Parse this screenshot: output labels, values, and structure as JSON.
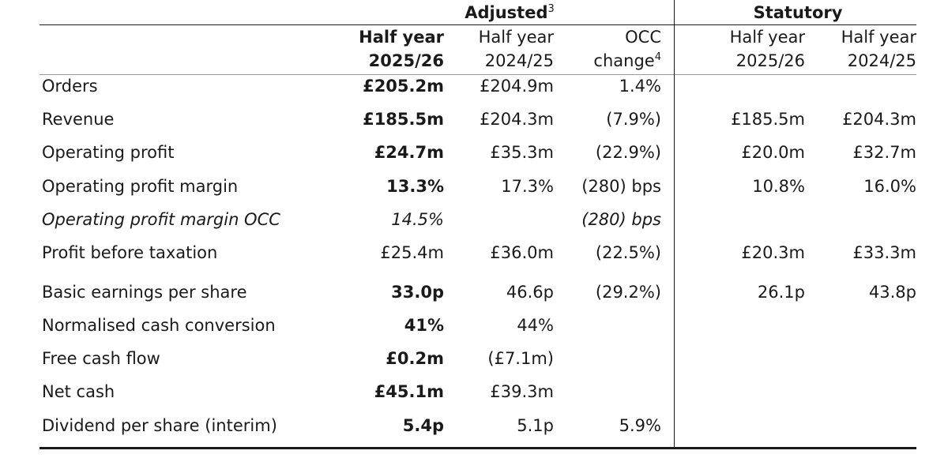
{
  "header": {
    "adjusted": {
      "label": "Adjusted",
      "note": "3"
    },
    "statutory": {
      "label": "Statutory"
    },
    "columns": [
      {
        "line1": "Half year",
        "line2": "2025/26"
      },
      {
        "line1": "Half year",
        "line2": "2024/25"
      },
      {
        "line1": "OCC",
        "line2": "change",
        "note": "4"
      },
      {
        "line1": "Half year",
        "line2": "2025/26"
      },
      {
        "line1": "Half year",
        "line2": "2024/25"
      }
    ]
  },
  "rows": [
    {
      "label": "Orders",
      "values": [
        "£205.2m",
        "£204.9m",
        "1.4%",
        "",
        ""
      ]
    },
    {
      "label": "Revenue",
      "values": [
        "£185.5m",
        "£204.3m",
        "(7.9%)",
        "£185.5m",
        "£204.3m"
      ]
    },
    {
      "label": "Operating profit",
      "values": [
        "£24.7m",
        "£35.3m",
        "(22.9%)",
        "£20.0m",
        "£32.7m"
      ]
    },
    {
      "label": "Operating profit margin",
      "values": [
        "13.3%",
        "17.3%",
        "(280) bps",
        "10.8%",
        "16.0%"
      ]
    },
    {
      "label": "Operating profit margin OCC",
      "values": [
        "14.5%",
        "",
        "(280) bps",
        "",
        ""
      ]
    },
    {
      "label": "Profit before taxation",
      "values": [
        "£25.4m",
        "£36.0m",
        "(22.5%)",
        "£20.3m",
        "£33.3m"
      ]
    },
    {
      "label": "Basic earnings per share",
      "values": [
        "33.0p",
        "46.6p",
        "(29.2%)",
        "26.1p",
        "43.8p"
      ]
    },
    {
      "label": "Normalised cash conversion",
      "values": [
        "41%",
        "44%",
        "",
        "",
        ""
      ]
    },
    {
      "label": "Free cash flow",
      "values": [
        "£0.2m",
        "(£7.1m)",
        "",
        "",
        ""
      ]
    },
    {
      "label": "Net cash",
      "values": [
        "£45.1m",
        "£39.3m",
        "",
        "",
        ""
      ]
    },
    {
      "label": "Dividend per share (interim)",
      "values": [
        "5.4p",
        "5.1p",
        "5.9%",
        "",
        ""
      ]
    }
  ]
}
